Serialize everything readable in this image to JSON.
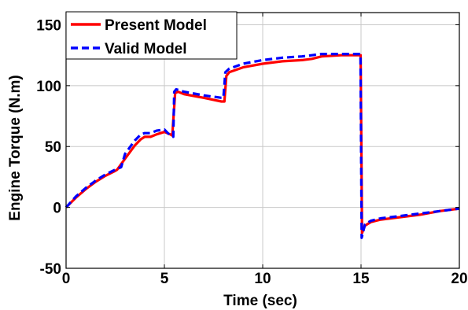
{
  "chart_data": {
    "type": "line",
    "xlabel": "Time (sec)",
    "ylabel": "Engine Torque (N.m)",
    "xlim": [
      0,
      20
    ],
    "ylim": [
      -50,
      160
    ],
    "xticks": [
      0,
      5,
      10,
      15,
      20
    ],
    "yticks": [
      -50,
      0,
      50,
      100,
      150
    ],
    "xtick_labels": [
      "0",
      "5",
      "10",
      "15",
      "20"
    ],
    "ytick_labels": [
      "-50",
      "0",
      "50",
      "100",
      "150"
    ],
    "grid": true,
    "legend_position": "top-left",
    "series": [
      {
        "name": "Present Model",
        "color": "#ff0000",
        "style": "solid",
        "x": [
          0,
          0.5,
          1.0,
          1.5,
          2.0,
          2.5,
          2.6,
          3.0,
          3.5,
          3.8,
          4.0,
          4.3,
          4.6,
          5.0,
          5.3,
          5.4,
          5.55,
          5.7,
          6.0,
          7.0,
          7.9,
          8.05,
          8.15,
          8.3,
          9.0,
          10.0,
          11.0,
          12.0,
          12.5,
          13.0,
          14.0,
          14.9,
          14.98,
          15.05,
          15.2,
          15.5,
          16.0,
          17.0,
          18.0,
          19.0,
          20.0
        ],
        "y": [
          0,
          8,
          15,
          21,
          26,
          30,
          31,
          40,
          51,
          56,
          58,
          58,
          60,
          62,
          60,
          59,
          94,
          95,
          93,
          90,
          87,
          87,
          108,
          111,
          115,
          118,
          120,
          121,
          122,
          124,
          125,
          125,
          125,
          -21,
          -15,
          -12,
          -10,
          -8,
          -6,
          -3,
          -1
        ]
      },
      {
        "name": "Valid Model",
        "color": "#0000ff",
        "style": "dashed",
        "x": [
          0,
          0.5,
          1.0,
          1.5,
          2.0,
          2.5,
          2.8,
          3.0,
          3.5,
          3.8,
          4.0,
          4.3,
          4.6,
          5.0,
          5.3,
          5.45,
          5.5,
          5.6,
          6.0,
          7.0,
          7.9,
          8.0,
          8.1,
          8.3,
          9.0,
          10.0,
          11.0,
          12.0,
          12.5,
          13.0,
          14.0,
          14.9,
          14.97,
          15.03,
          15.2,
          15.5,
          16.0,
          17.0,
          18.0,
          19.0,
          20.0
        ],
        "y": [
          0,
          9,
          16,
          22,
          27,
          31,
          33,
          44,
          55,
          60,
          61,
          61,
          63,
          64,
          59,
          58,
          95,
          97,
          95,
          92,
          90,
          90,
          111,
          114,
          118,
          121,
          123,
          124,
          125,
          126,
          126,
          126,
          126,
          -25,
          -14,
          -11,
          -9,
          -7,
          -5,
          -3,
          -1
        ]
      }
    ]
  }
}
